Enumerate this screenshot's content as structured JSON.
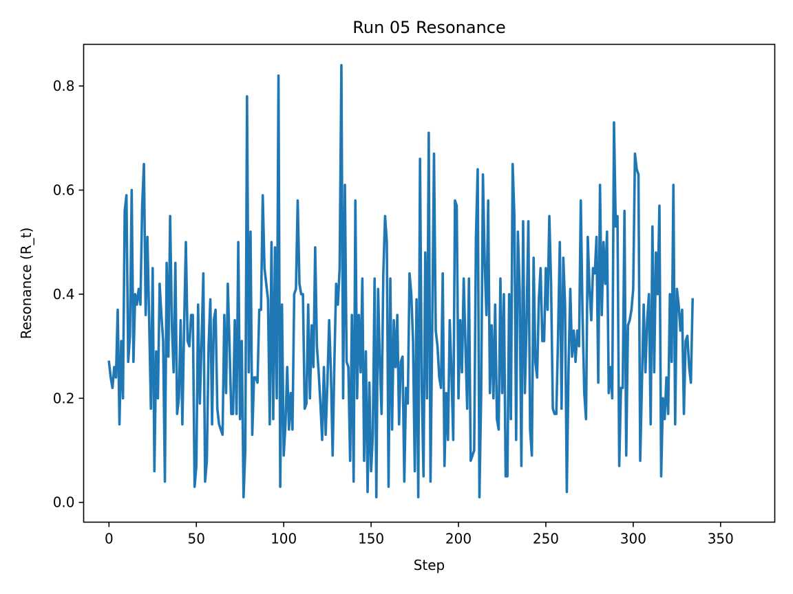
{
  "chart_data": {
    "type": "line",
    "title": "Run 05 Resonance",
    "xlabel": "Step",
    "ylabel": "Resonance (R_t)",
    "xlim": [
      -14.5,
      381
    ],
    "ylim": [
      -0.038,
      0.88
    ],
    "xticks": [
      0,
      50,
      100,
      150,
      200,
      250,
      300,
      350
    ],
    "yticks": [
      0.0,
      0.2,
      0.4,
      0.6,
      0.8
    ],
    "ytick_labels": [
      "0.0",
      "0.2",
      "0.4",
      "0.6",
      "0.8"
    ],
    "grid": false,
    "color": "#1f77b4",
    "series": [
      {
        "x0": 0,
        "values": [
          0.27,
          0.24,
          0.22,
          0.26,
          0.24,
          0.37,
          0.15,
          0.31,
          0.2,
          0.56,
          0.59,
          0.27,
          0.32,
          0.6,
          0.27,
          0.4,
          0.38,
          0.41,
          0.38,
          0.57,
          0.65,
          0.36,
          0.51,
          0.35,
          0.18,
          0.45,
          0.06,
          0.29,
          0.2,
          0.42,
          0.36,
          0.31,
          0.04,
          0.46,
          0.28,
          0.55,
          0.34,
          0.25,
          0.46,
          0.17,
          0.2,
          0.35,
          0.15,
          0.34,
          0.5,
          0.31,
          0.3,
          0.36,
          0.36,
          0.03,
          0.07,
          0.38,
          0.19,
          0.31,
          0.44,
          0.04,
          0.08,
          0.3,
          0.39,
          0.15,
          0.35,
          0.37,
          0.18,
          0.15,
          0.14,
          0.13,
          0.36,
          0.21,
          0.42,
          0.3,
          0.17,
          0.17,
          0.35,
          0.17,
          0.5,
          0.16,
          0.31,
          0.01,
          0.1,
          0.78,
          0.25,
          0.52,
          0.13,
          0.24,
          0.24,
          0.23,
          0.37,
          0.37,
          0.59,
          0.45,
          0.42,
          0.39,
          0.15,
          0.5,
          0.16,
          0.49,
          0.2,
          0.82,
          0.03,
          0.38,
          0.09,
          0.15,
          0.26,
          0.14,
          0.21,
          0.14,
          0.4,
          0.41,
          0.58,
          0.42,
          0.4,
          0.4,
          0.18,
          0.19,
          0.38,
          0.2,
          0.34,
          0.26,
          0.49,
          0.3,
          0.25,
          0.19,
          0.12,
          0.26,
          0.13,
          0.23,
          0.35,
          0.25,
          0.09,
          0.27,
          0.42,
          0.38,
          0.45,
          0.84,
          0.2,
          0.61,
          0.27,
          0.26,
          0.08,
          0.36,
          0.04,
          0.58,
          0.2,
          0.36,
          0.25,
          0.43,
          0.08,
          0.29,
          0.02,
          0.23,
          0.06,
          0.13,
          0.43,
          0.01,
          0.41,
          0.27,
          0.17,
          0.44,
          0.55,
          0.5,
          0.03,
          0.43,
          0.14,
          0.35,
          0.26,
          0.36,
          0.15,
          0.27,
          0.28,
          0.04,
          0.22,
          0.19,
          0.44,
          0.4,
          0.31,
          0.06,
          0.39,
          0.01,
          0.66,
          0.22,
          0.05,
          0.48,
          0.2,
          0.71,
          0.04,
          0.34,
          0.67,
          0.33,
          0.3,
          0.24,
          0.22,
          0.44,
          0.07,
          0.21,
          0.12,
          0.35,
          0.25,
          0.12,
          0.58,
          0.57,
          0.2,
          0.35,
          0.25,
          0.43,
          0.3,
          0.18,
          0.43,
          0.08,
          0.09,
          0.1,
          0.51,
          0.64,
          0.01,
          0.21,
          0.63,
          0.46,
          0.36,
          0.58,
          0.21,
          0.34,
          0.2,
          0.38,
          0.16,
          0.14,
          0.43,
          0.21,
          0.4,
          0.05,
          0.05,
          0.4,
          0.16,
          0.65,
          0.55,
          0.12,
          0.52,
          0.41,
          0.07,
          0.54,
          0.21,
          0.35,
          0.54,
          0.14,
          0.09,
          0.47,
          0.27,
          0.24,
          0.39,
          0.45,
          0.31,
          0.31,
          0.45,
          0.37,
          0.55,
          0.42,
          0.18,
          0.17,
          0.17,
          0.32,
          0.5,
          0.18,
          0.47,
          0.38,
          0.02,
          0.26,
          0.41,
          0.28,
          0.33,
          0.27,
          0.33,
          0.3,
          0.58,
          0.36,
          0.21,
          0.16,
          0.51,
          0.41,
          0.35,
          0.45,
          0.44,
          0.51,
          0.23,
          0.61,
          0.36,
          0.5,
          0.42,
          0.52,
          0.21,
          0.26,
          0.2,
          0.73,
          0.53,
          0.55,
          0.07,
          0.22,
          0.22,
          0.56,
          0.09,
          0.34,
          0.35,
          0.37,
          0.41,
          0.67,
          0.64,
          0.63,
          0.08,
          0.23,
          0.38,
          0.25,
          0.35,
          0.4,
          0.15,
          0.53,
          0.25,
          0.48,
          0.4,
          0.57,
          0.05,
          0.2,
          0.16,
          0.24,
          0.17,
          0.4,
          0.27,
          0.61,
          0.15,
          0.41,
          0.38,
          0.33,
          0.37,
          0.17,
          0.31,
          0.32,
          0.26,
          0.23,
          0.39
        ]
      }
    ]
  }
}
